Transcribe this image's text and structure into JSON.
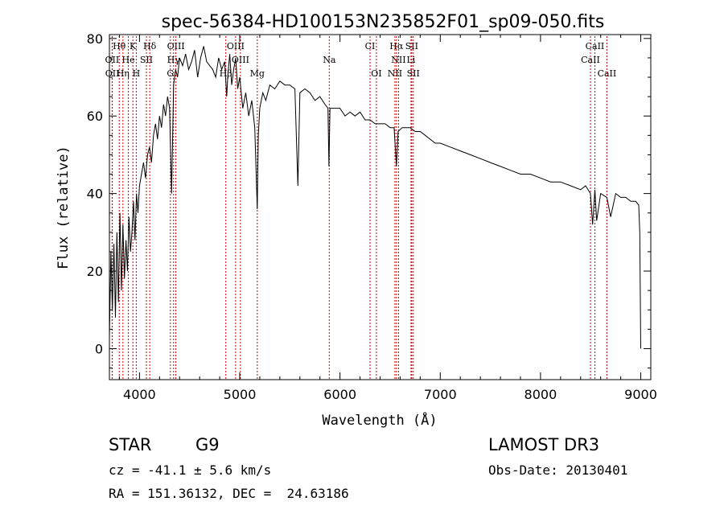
{
  "chart_data": {
    "type": "line",
    "title": "spec-56384-HD100153N235852F01_sp09-050.fits",
    "xlabel": "Wavelength (Å)",
    "ylabel": "Flux (relative)",
    "xlim": [
      3700,
      9100
    ],
    "ylim": [
      -8,
      81
    ],
    "xticks": [
      4000,
      5000,
      6000,
      7000,
      8000,
      9000
    ],
    "yticks": [
      0,
      20,
      40,
      60,
      80
    ],
    "grid": false,
    "line_color": "#000000",
    "marker_color": "#cc0000",
    "series": [
      {
        "x": [
          3700,
          3715,
          3730,
          3745,
          3760,
          3775,
          3790,
          3805,
          3820,
          3835,
          3850,
          3865,
          3880,
          3895,
          3910,
          3925,
          3940,
          3955,
          3970,
          3985,
          4000,
          4020,
          4040,
          4060,
          4080,
          4100,
          4120,
          4140,
          4160,
          4180,
          4200,
          4220,
          4240,
          4260,
          4280,
          4300,
          4320,
          4340,
          4360,
          4380,
          4400,
          4430,
          4460,
          4490,
          4520,
          4550,
          4580,
          4610,
          4640,
          4670,
          4700,
          4730,
          4760,
          4790,
          4820,
          4850,
          4870,
          4880,
          4900,
          4920,
          4940,
          4960,
          4980,
          5000,
          5030,
          5060,
          5090,
          5120,
          5150,
          5175,
          5185,
          5200,
          5230,
          5260,
          5300,
          5350,
          5400,
          5450,
          5500,
          5550,
          5580,
          5600,
          5650,
          5700,
          5750,
          5800,
          5850,
          5880,
          5890,
          5900,
          5950,
          6000,
          6050,
          6100,
          6150,
          6200,
          6250,
          6300,
          6350,
          6400,
          6450,
          6500,
          6540,
          6563,
          6580,
          6620,
          6660,
          6700,
          6750,
          6800,
          6850,
          6900,
          6950,
          7000,
          7100,
          7200,
          7300,
          7400,
          7500,
          7600,
          7700,
          7800,
          7900,
          8000,
          8100,
          8200,
          8300,
          8400,
          8450,
          8498,
          8520,
          8542,
          8560,
          8600,
          8662,
          8700,
          8750,
          8800,
          8850,
          8900,
          8950,
          8980,
          8990,
          9000
        ],
        "y": [
          3,
          25,
          10,
          27,
          8,
          30,
          12,
          35,
          15,
          32,
          18,
          28,
          20,
          34,
          25,
          30,
          38,
          28,
          40,
          35,
          42,
          45,
          48,
          44,
          50,
          52,
          48,
          55,
          58,
          54,
          60,
          57,
          63,
          60,
          65,
          62,
          40,
          68,
          72,
          70,
          75,
          73,
          76,
          72,
          74,
          77,
          70,
          75,
          78,
          74,
          73,
          72,
          70,
          75,
          72,
          74,
          65,
          70,
          76,
          68,
          72,
          75,
          67,
          70,
          62,
          66,
          60,
          64,
          57,
          36,
          55,
          62,
          66,
          64,
          68,
          67,
          69,
          68,
          68,
          67,
          42,
          66,
          67,
          66,
          64,
          65,
          63,
          62,
          47,
          62,
          62,
          62,
          60,
          61,
          60,
          61,
          59,
          59,
          58,
          58,
          58,
          57,
          57,
          47,
          56,
          57,
          57,
          57,
          56,
          56,
          55,
          54,
          53,
          53,
          52,
          51,
          50,
          49,
          48,
          47,
          46,
          45,
          45,
          44,
          43,
          43,
          42,
          41,
          42,
          40,
          32,
          41,
          33,
          40,
          39,
          34,
          40,
          39,
          39,
          38,
          38,
          37,
          30,
          0
        ]
      }
    ],
    "line_markers": [
      {
        "label": "Hθ",
        "x": 3798,
        "row": 1
      },
      {
        "label": "K",
        "x": 3934,
        "row": 1
      },
      {
        "label": "Hδ",
        "x": 4102,
        "row": 1
      },
      {
        "label": "OIII",
        "x": 4363,
        "row": 1
      },
      {
        "label": "OIII",
        "x": 4959,
        "row": 1
      },
      {
        "label": "CI",
        "x": 6300,
        "row": 1
      },
      {
        "label": "Hα",
        "x": 6563,
        "row": 1
      },
      {
        "label": "SII",
        "x": 6716,
        "row": 1
      },
      {
        "label": "CaII",
        "x": 8542,
        "row": 1
      },
      {
        "label": "OII",
        "x": 3727,
        "row": 2
      },
      {
        "label": "He",
        "x": 3889,
        "row": 2
      },
      {
        "label": "SII",
        "x": 4069,
        "row": 2
      },
      {
        "label": "Hγ",
        "x": 4340,
        "row": 2
      },
      {
        "label": "OIII",
        "x": 5007,
        "row": 2
      },
      {
        "label": "Na",
        "x": 5893,
        "row": 2
      },
      {
        "label": "NII",
        "x": 6584,
        "row": 2
      },
      {
        "label": "Li",
        "x": 6708,
        "row": 2
      },
      {
        "label": "CaII",
        "x": 8498,
        "row": 2
      },
      {
        "label": "OII",
        "x": 3729,
        "row": 3
      },
      {
        "label": "Hη",
        "x": 3835,
        "row": 3
      },
      {
        "label": "H",
        "x": 3968,
        "row": 3
      },
      {
        "label": "G",
        "x": 4308,
        "row": 3
      },
      {
        "label": "Hβ",
        "x": 4861,
        "row": 3
      },
      {
        "label": "Mg",
        "x": 5175,
        "row": 3
      },
      {
        "label": "OI",
        "x": 6363,
        "row": 3
      },
      {
        "label": "NII",
        "x": 6548,
        "row": 3
      },
      {
        "label": "SII",
        "x": 6731,
        "row": 3
      },
      {
        "label": "CaII",
        "x": 8662,
        "row": 3
      }
    ]
  },
  "info": {
    "class": "STAR",
    "subclass": "G9",
    "survey": "LAMOST DR3",
    "cz": "cz = -41.1 ± 5.6 km/s",
    "obs_date": "Obs-Date: 20130401",
    "radec": "RA = 151.36132, DEC =  24.63186"
  }
}
